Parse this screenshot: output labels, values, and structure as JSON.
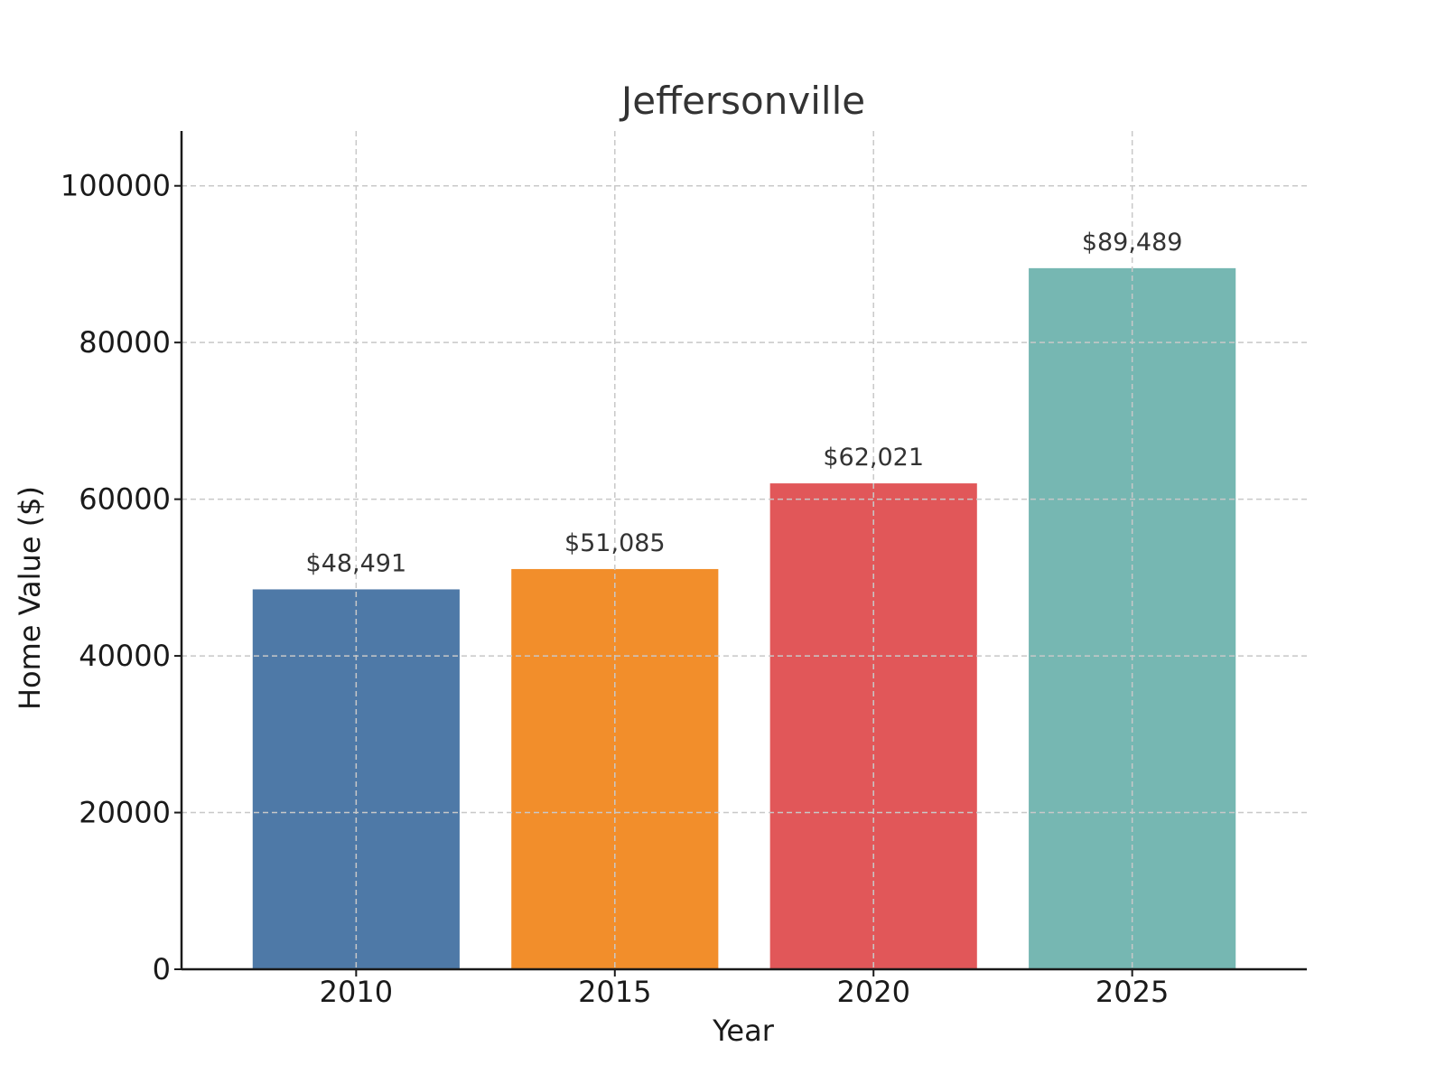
{
  "chart_data": {
    "type": "bar",
    "title": "Jeffersonville",
    "xlabel": "Year",
    "ylabel": "Home Value ($)",
    "categories": [
      "2010",
      "2015",
      "2020",
      "2025"
    ],
    "values": [
      48491,
      51085,
      62021,
      89489
    ],
    "value_labels": [
      "$48,491",
      "$51,085",
      "$62,021",
      "$89,489"
    ],
    "colors": [
      "#4e79a7",
      "#f28e2b",
      "#e15759",
      "#76b7b2"
    ],
    "ylim": [
      0,
      107000
    ],
    "yticks": [
      0,
      20000,
      40000,
      60000,
      80000,
      100000
    ],
    "ytick_labels": [
      "0",
      "20000",
      "40000",
      "60000",
      "80000",
      "100000"
    ],
    "grid": true,
    "legend": "none"
  }
}
